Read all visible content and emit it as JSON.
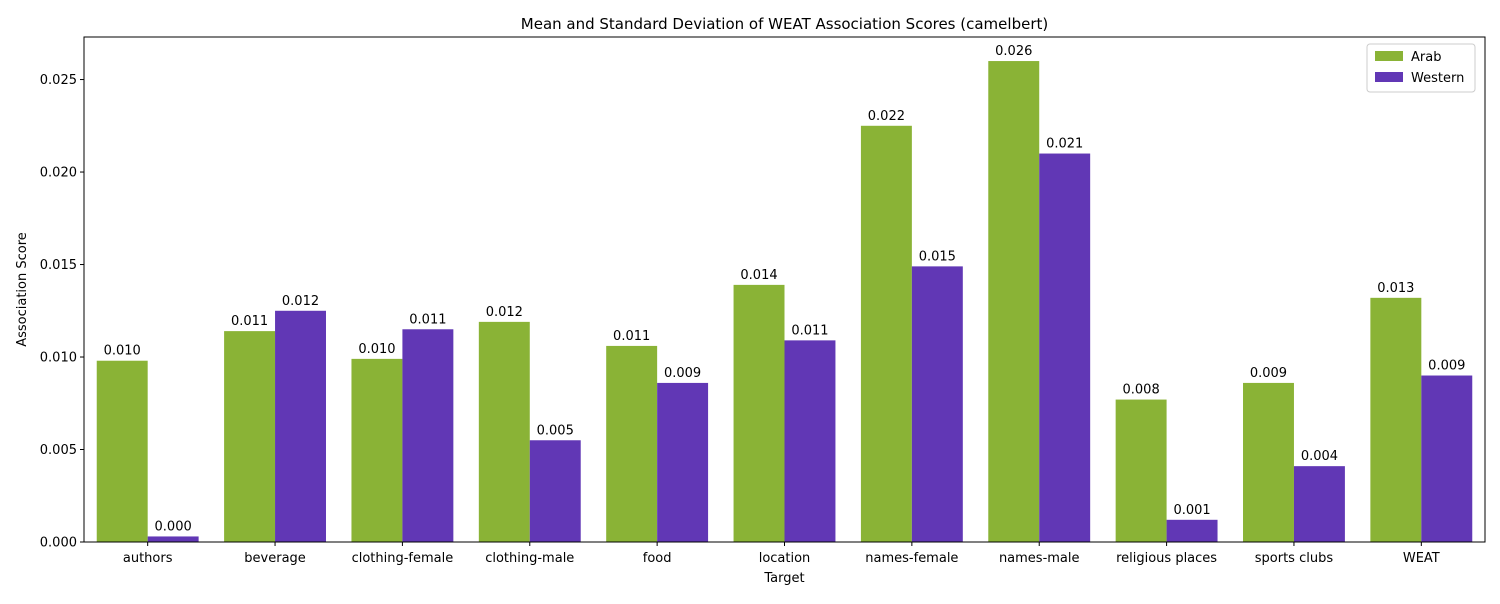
{
  "chart_data": {
    "type": "bar",
    "title": "Mean and Standard Deviation of WEAT Association Scores (camelbert)",
    "xlabel": "Target",
    "ylabel": "Association Score",
    "ylim": [
      0,
      0.0273
    ],
    "yticks": [
      0.0,
      0.005,
      0.01,
      0.015,
      0.02,
      0.025
    ],
    "ytick_labels": [
      "0.000",
      "0.005",
      "0.010",
      "0.015",
      "0.020",
      "0.025"
    ],
    "grid": false,
    "legend_position": "top-right",
    "categories": [
      "authors",
      "beverage",
      "clothing-female",
      "clothing-male",
      "food",
      "location",
      "names-female",
      "names-male",
      "religious places",
      "sports clubs",
      "WEAT"
    ],
    "series": [
      {
        "name": "Arab",
        "color": "#8ab336",
        "values": [
          0.0098,
          0.0114,
          0.0099,
          0.0119,
          0.0106,
          0.0139,
          0.0225,
          0.026,
          0.0077,
          0.0086,
          0.0132
        ],
        "value_labels": [
          "0.010",
          "0.011",
          "0.010",
          "0.012",
          "0.011",
          "0.014",
          "0.022",
          "0.026",
          "0.008",
          "0.009",
          "0.013"
        ]
      },
      {
        "name": "Western",
        "color": "#6137b5",
        "values": [
          0.0003,
          0.0125,
          0.0115,
          0.0055,
          0.0086,
          0.0109,
          0.0149,
          0.021,
          0.0012,
          0.0041,
          0.009
        ],
        "value_labels": [
          "0.000",
          "0.012",
          "0.011",
          "0.005",
          "0.009",
          "0.011",
          "0.015",
          "0.021",
          "0.001",
          "0.004",
          "0.009"
        ]
      }
    ]
  }
}
